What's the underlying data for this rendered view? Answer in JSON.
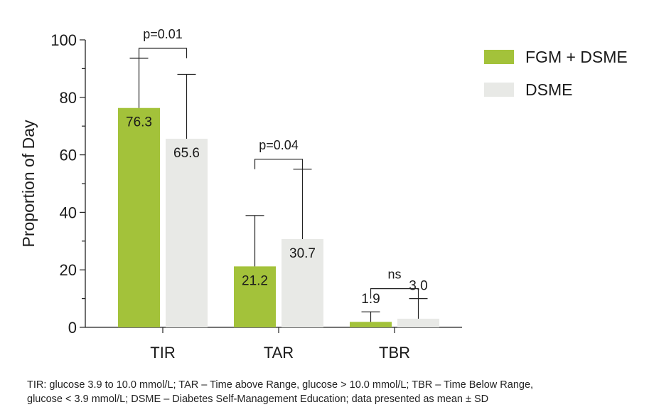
{
  "chart_data": {
    "type": "bar",
    "title": "",
    "xlabel": "",
    "ylabel": "Proportion of Day",
    "ylim": [
      0,
      100
    ],
    "yticks": [
      0,
      20,
      40,
      60,
      80,
      100
    ],
    "categories": [
      "TIR",
      "TAR",
      "TBR"
    ],
    "series": [
      {
        "name": "FGM + DSME",
        "color": "#a3c23a",
        "values": [
          76.3,
          21.2,
          1.9
        ],
        "sd_upper": [
          93.6,
          38.9,
          5.4
        ],
        "value_labels": [
          "76.3",
          "21.2",
          "1.9"
        ]
      },
      {
        "name": "DSME",
        "color": "#e8e9e6",
        "values": [
          65.6,
          30.7,
          3.0
        ],
        "sd_upper": [
          88.0,
          55.0,
          10.0
        ],
        "value_labels": [
          "65.6",
          "30.7",
          "3.0"
        ]
      }
    ],
    "comparisons": [
      "p=0.01",
      "p=0.04",
      "ns"
    ],
    "legend_position": "top-right",
    "grid": false
  },
  "footnote": {
    "line1": "TIR: glucose 3.9 to 10.0 mmol/L; TAR – Time above Range, glucose > 10.0 mmol/L; TBR – Time Below Range,",
    "line2": "glucose < 3.9 mmol/L; DSME – Diabetes Self-Management Education; data presented as mean ± SD"
  }
}
